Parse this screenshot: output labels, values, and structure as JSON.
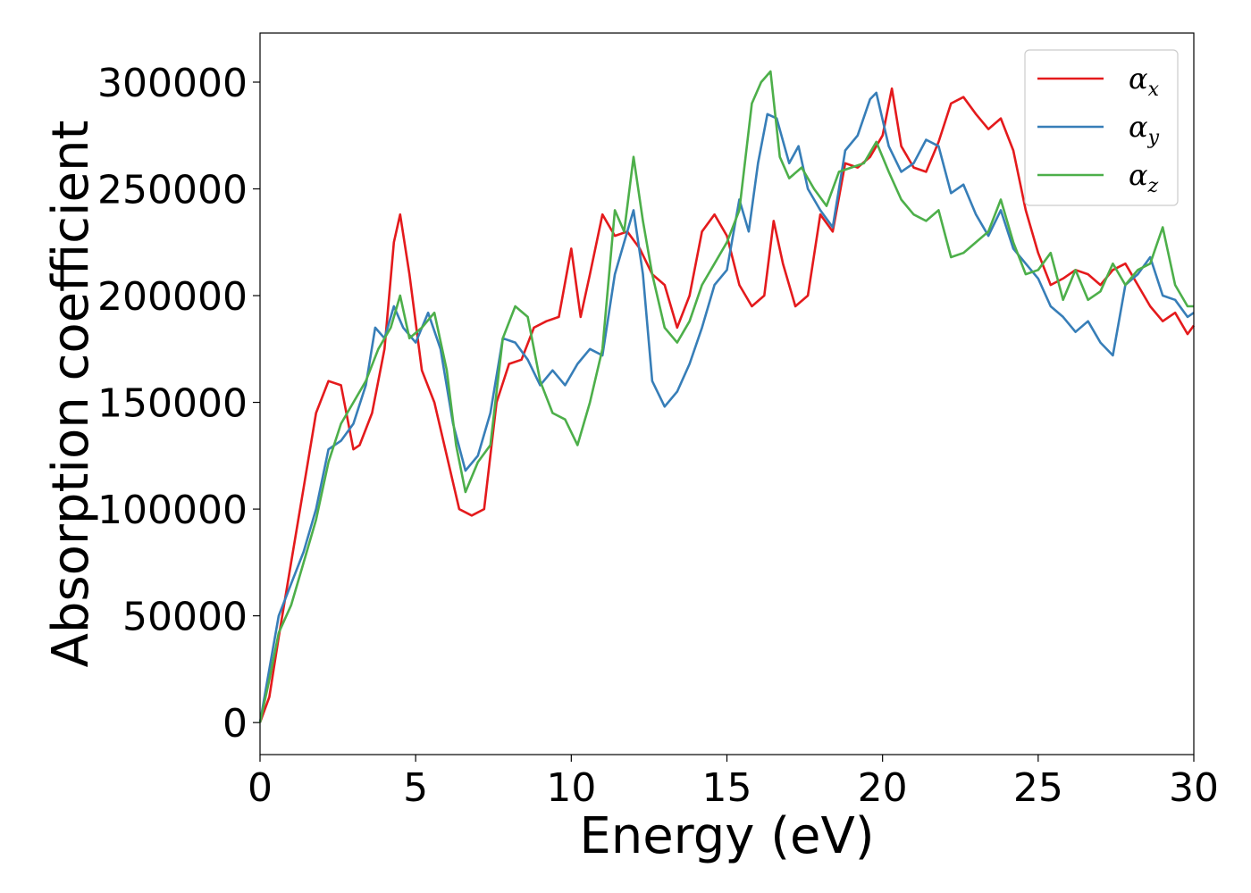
{
  "chart_data": {
    "type": "line",
    "title": "",
    "xlabel": "Energy (eV)",
    "ylabel": "Absorption coefficient",
    "xlim": [
      0,
      30
    ],
    "ylim": [
      -15000,
      323000
    ],
    "xticks": [
      0,
      5,
      10,
      15,
      20,
      25,
      30
    ],
    "yticks": [
      0,
      50000,
      100000,
      150000,
      200000,
      250000,
      300000
    ],
    "xtick_labels": [
      "0",
      "5",
      "10",
      "15",
      "20",
      "25",
      "30"
    ],
    "ytick_labels": [
      "0",
      "50000",
      "100000",
      "150000",
      "200000",
      "250000",
      "300000"
    ],
    "grid": false,
    "legend_position": "top-right",
    "series": [
      {
        "name": "alpha_x",
        "label_symbol": "α",
        "label_sub": "x",
        "color": "#e41a1c",
        "x": [
          0,
          0.3,
          0.6,
          1.0,
          1.4,
          1.8,
          2.2,
          2.6,
          3.0,
          3.2,
          3.6,
          4.0,
          4.3,
          4.5,
          4.8,
          5.2,
          5.6,
          6.0,
          6.4,
          6.8,
          7.2,
          7.6,
          8.0,
          8.4,
          8.8,
          9.2,
          9.6,
          10.0,
          10.3,
          10.6,
          11.0,
          11.4,
          11.8,
          12.2,
          12.6,
          13.0,
          13.4,
          13.8,
          14.2,
          14.6,
          15.0,
          15.4,
          15.8,
          16.2,
          16.5,
          16.8,
          17.2,
          17.6,
          18.0,
          18.4,
          18.8,
          19.2,
          19.6,
          20.0,
          20.3,
          20.6,
          21.0,
          21.4,
          21.8,
          22.2,
          22.6,
          23.0,
          23.4,
          23.8,
          24.2,
          24.6,
          25.0,
          25.4,
          25.8,
          26.2,
          26.6,
          27.0,
          27.4,
          27.8,
          28.2,
          28.6,
          29.0,
          29.4,
          29.8,
          30.0
        ],
        "values": [
          0,
          12000,
          40000,
          75000,
          110000,
          145000,
          160000,
          158000,
          128000,
          130000,
          145000,
          175000,
          225000,
          238000,
          210000,
          165000,
          150000,
          125000,
          100000,
          97000,
          100000,
          150000,
          168000,
          170000,
          185000,
          188000,
          190000,
          222000,
          190000,
          210000,
          238000,
          228000,
          230000,
          222000,
          210000,
          205000,
          185000,
          200000,
          230000,
          238000,
          228000,
          205000,
          195000,
          200000,
          235000,
          215000,
          195000,
          200000,
          238000,
          230000,
          262000,
          260000,
          265000,
          275000,
          297000,
          270000,
          260000,
          258000,
          272000,
          290000,
          293000,
          285000,
          278000,
          283000,
          268000,
          240000,
          220000,
          205000,
          208000,
          212000,
          210000,
          205000,
          212000,
          215000,
          205000,
          195000,
          188000,
          192000,
          182000,
          186000
        ]
      },
      {
        "name": "alpha_y",
        "label_symbol": "α",
        "label_sub": "y",
        "color": "#377eb8",
        "x": [
          0,
          0.3,
          0.6,
          1.0,
          1.4,
          1.8,
          2.2,
          2.6,
          3.0,
          3.4,
          3.7,
          4.0,
          4.3,
          4.6,
          5.0,
          5.4,
          5.8,
          6.2,
          6.6,
          7.0,
          7.4,
          7.8,
          8.2,
          8.6,
          9.0,
          9.4,
          9.8,
          10.2,
          10.6,
          11.0,
          11.4,
          11.8,
          12.0,
          12.3,
          12.6,
          13.0,
          13.4,
          13.8,
          14.2,
          14.6,
          15.0,
          15.4,
          15.7,
          16.0,
          16.3,
          16.6,
          17.0,
          17.3,
          17.6,
          18.0,
          18.4,
          18.8,
          19.2,
          19.6,
          19.8,
          20.2,
          20.6,
          21.0,
          21.4,
          21.8,
          22.2,
          22.6,
          23.0,
          23.4,
          23.8,
          24.2,
          24.6,
          25.0,
          25.4,
          25.8,
          26.2,
          26.6,
          27.0,
          27.4,
          27.8,
          28.2,
          28.6,
          29.0,
          29.4,
          29.8,
          30.0
        ],
        "values": [
          0,
          25000,
          50000,
          65000,
          80000,
          100000,
          128000,
          132000,
          140000,
          158000,
          185000,
          180000,
          195000,
          185000,
          178000,
          192000,
          175000,
          140000,
          118000,
          125000,
          145000,
          180000,
          178000,
          170000,
          158000,
          165000,
          158000,
          168000,
          175000,
          172000,
          210000,
          230000,
          240000,
          210000,
          160000,
          148000,
          155000,
          168000,
          185000,
          205000,
          212000,
          245000,
          230000,
          262000,
          285000,
          283000,
          262000,
          270000,
          250000,
          240000,
          232000,
          268000,
          275000,
          292000,
          295000,
          270000,
          258000,
          262000,
          273000,
          270000,
          248000,
          252000,
          238000,
          228000,
          240000,
          222000,
          215000,
          208000,
          195000,
          190000,
          183000,
          188000,
          178000,
          172000,
          205000,
          210000,
          218000,
          200000,
          198000,
          190000,
          192000
        ]
      },
      {
        "name": "alpha_z",
        "label_symbol": "α",
        "label_sub": "z",
        "color": "#4daf4a",
        "x": [
          0,
          0.3,
          0.6,
          1.0,
          1.4,
          1.8,
          2.2,
          2.6,
          3.0,
          3.4,
          3.8,
          4.2,
          4.5,
          4.8,
          5.2,
          5.6,
          6.0,
          6.3,
          6.6,
          7.0,
          7.4,
          7.8,
          8.2,
          8.6,
          9.0,
          9.4,
          9.8,
          10.2,
          10.6,
          11.0,
          11.4,
          11.7,
          12.0,
          12.3,
          12.6,
          13.0,
          13.4,
          13.8,
          14.2,
          14.6,
          15.0,
          15.4,
          15.8,
          16.1,
          16.4,
          16.7,
          17.0,
          17.4,
          17.8,
          18.2,
          18.6,
          19.0,
          19.4,
          19.8,
          20.2,
          20.6,
          21.0,
          21.4,
          21.8,
          22.2,
          22.6,
          23.0,
          23.4,
          23.8,
          24.2,
          24.6,
          25.0,
          25.4,
          25.8,
          26.2,
          26.6,
          27.0,
          27.4,
          27.8,
          28.2,
          28.6,
          29.0,
          29.4,
          29.8,
          30.0
        ],
        "values": [
          0,
          20000,
          42000,
          55000,
          75000,
          95000,
          122000,
          140000,
          150000,
          160000,
          175000,
          185000,
          200000,
          180000,
          185000,
          192000,
          165000,
          130000,
          108000,
          122000,
          130000,
          180000,
          195000,
          190000,
          160000,
          145000,
          142000,
          130000,
          150000,
          175000,
          240000,
          230000,
          265000,
          235000,
          210000,
          185000,
          178000,
          188000,
          205000,
          215000,
          225000,
          240000,
          290000,
          300000,
          305000,
          265000,
          255000,
          260000,
          250000,
          242000,
          258000,
          260000,
          262000,
          272000,
          258000,
          245000,
          238000,
          235000,
          240000,
          218000,
          220000,
          225000,
          230000,
          245000,
          225000,
          210000,
          212000,
          220000,
          198000,
          212000,
          198000,
          202000,
          215000,
          205000,
          212000,
          215000,
          232000,
          205000,
          195000,
          195000
        ]
      }
    ]
  }
}
